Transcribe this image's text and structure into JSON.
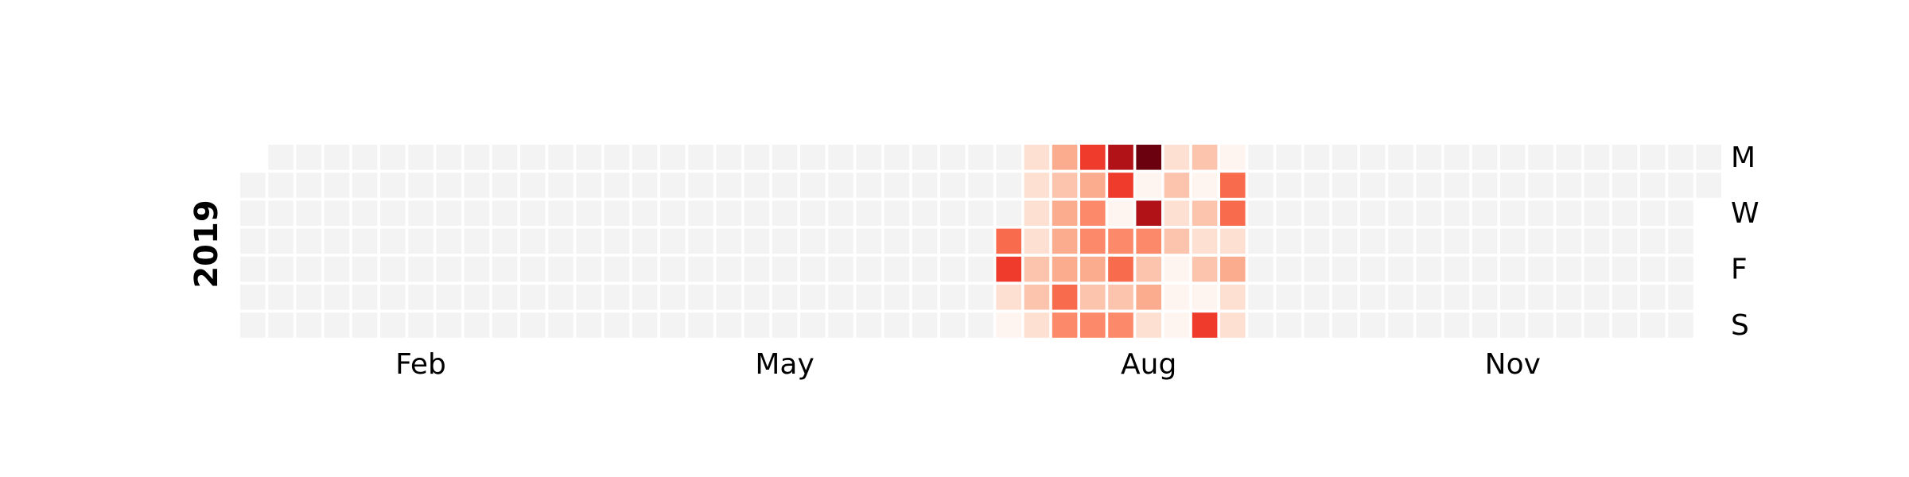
{
  "chart_data": {
    "type": "heatmap",
    "title": "",
    "year": "2019",
    "x_tick_labels": [
      "Feb",
      "May",
      "Aug",
      "Nov"
    ],
    "x_tick_weeks": [
      6,
      19,
      32,
      45
    ],
    "y_tick_labels": [
      "M",
      "W",
      "F",
      "S"
    ],
    "y_tick_days": [
      0,
      2,
      4,
      6
    ],
    "first_weekday_offset": 1,
    "num_weeks": 53,
    "scale": "0-8 relative intensity (no colorbar shown)",
    "empty_color": "#f3f3f3",
    "color_scale": [
      "#fff5f0",
      "#fee0d2",
      "#fcc4ad",
      "#fcac8e",
      "#fc8a6a",
      "#f96b4d",
      "#ee3b2c",
      "#b11218",
      "#6b010e"
    ],
    "active_weeks": [
      {
        "week": 27,
        "days": [
          null,
          null,
          null,
          5,
          6,
          1,
          0
        ]
      },
      {
        "week": 28,
        "days": [
          1,
          1,
          1,
          1,
          2,
          2,
          1
        ]
      },
      {
        "week": 29,
        "days": [
          3,
          2,
          3,
          3,
          3,
          5,
          4
        ]
      },
      {
        "week": 30,
        "days": [
          6,
          3,
          4,
          4,
          3,
          2,
          4
        ]
      },
      {
        "week": 31,
        "days": [
          7,
          6,
          0,
          4,
          5,
          2,
          4
        ]
      },
      {
        "week": 32,
        "days": [
          8,
          0,
          7,
          4,
          2,
          3,
          1
        ]
      },
      {
        "week": 33,
        "days": [
          1,
          2,
          1,
          2,
          0,
          0,
          0
        ]
      },
      {
        "week": 34,
        "days": [
          2,
          0,
          2,
          1,
          2,
          0,
          6
        ]
      },
      {
        "week": 35,
        "days": [
          0,
          5,
          5,
          1,
          3,
          1,
          1
        ]
      }
    ]
  }
}
